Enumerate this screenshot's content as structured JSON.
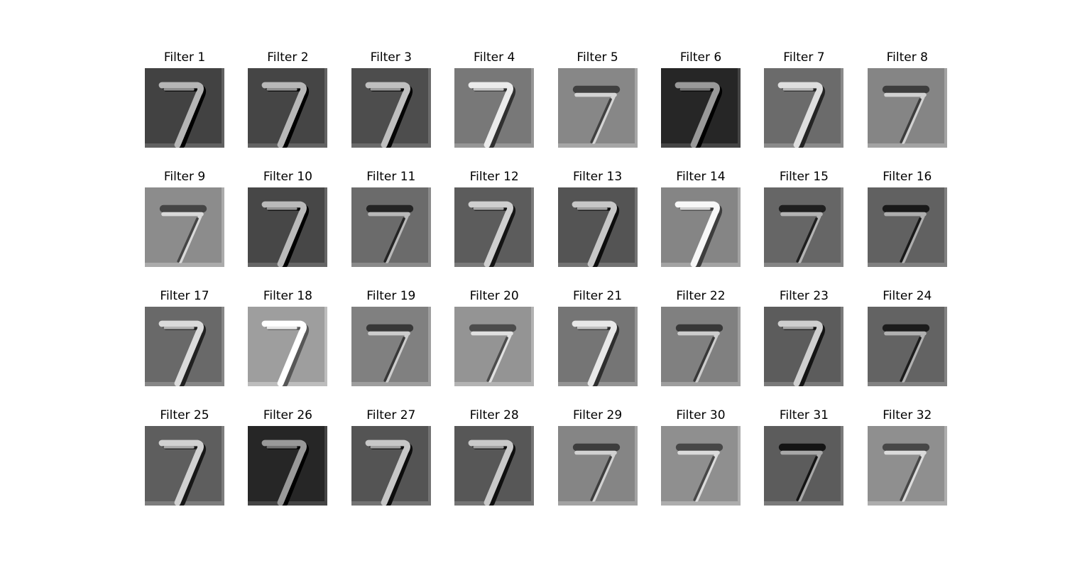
{
  "figure": {
    "background": "#ffffff",
    "rows": 4,
    "columns": 8,
    "panels": [
      {
        "title": "Filter 1",
        "background_level": 0.26,
        "mark": "white-stroke-dark-edge"
      },
      {
        "title": "Filter 2",
        "background_level": 0.27,
        "mark": "white-stroke-dark-edge"
      },
      {
        "title": "Filter 3",
        "background_level": 0.3,
        "mark": "white-stroke-dark-edge"
      },
      {
        "title": "Filter 4",
        "background_level": 0.47,
        "mark": "white-stroke-dark-edge"
      },
      {
        "title": "Filter 5",
        "background_level": 0.53,
        "mark": "dark-bar-faint-stroke"
      },
      {
        "title": "Filter 6",
        "background_level": 0.15,
        "mark": "white-stroke-dark-edge"
      },
      {
        "title": "Filter 7",
        "background_level": 0.42,
        "mark": "white-stroke-dark-edge"
      },
      {
        "title": "Filter 8",
        "background_level": 0.52,
        "mark": "dark-bar-faint-stroke"
      },
      {
        "title": "Filter 9",
        "background_level": 0.55,
        "mark": "dark-bar-faint-stroke"
      },
      {
        "title": "Filter 10",
        "background_level": 0.28,
        "mark": "white-stroke-dark-edge"
      },
      {
        "title": "Filter 11",
        "background_level": 0.42,
        "mark": "dark-bar-faint-stroke"
      },
      {
        "title": "Filter 12",
        "background_level": 0.36,
        "mark": "white-stroke-dark-edge"
      },
      {
        "title": "Filter 13",
        "background_level": 0.33,
        "mark": "white-stroke-dark-edge"
      },
      {
        "title": "Filter 14",
        "background_level": 0.52,
        "mark": "white-stroke-dark-edge"
      },
      {
        "title": "Filter 15",
        "background_level": 0.4,
        "mark": "dark-bar-faint-stroke"
      },
      {
        "title": "Filter 16",
        "background_level": 0.38,
        "mark": "dark-bar-faint-stroke"
      },
      {
        "title": "Filter 17",
        "background_level": 0.41,
        "mark": "white-stroke-dark-edge"
      },
      {
        "title": "Filter 18",
        "background_level": 0.62,
        "mark": "white-stroke-dark-edge"
      },
      {
        "title": "Filter 19",
        "background_level": 0.5,
        "mark": "dark-bar-faint-stroke"
      },
      {
        "title": "Filter 20",
        "background_level": 0.58,
        "mark": "dark-bar-faint-stroke"
      },
      {
        "title": "Filter 21",
        "background_level": 0.46,
        "mark": "white-stroke-dark-edge"
      },
      {
        "title": "Filter 22",
        "background_level": 0.5,
        "mark": "dark-bar-faint-stroke"
      },
      {
        "title": "Filter 23",
        "background_level": 0.36,
        "mark": "white-stroke-dark-edge"
      },
      {
        "title": "Filter 24",
        "background_level": 0.39,
        "mark": "dark-bar-faint-stroke"
      },
      {
        "title": "Filter 25",
        "background_level": 0.37,
        "mark": "white-stroke-dark-edge"
      },
      {
        "title": "Filter 26",
        "background_level": 0.15,
        "mark": "white-stroke-dark-edge"
      },
      {
        "title": "Filter 27",
        "background_level": 0.33,
        "mark": "white-stroke-dark-edge"
      },
      {
        "title": "Filter 28",
        "background_level": 0.34,
        "mark": "white-stroke-dark-edge"
      },
      {
        "title": "Filter 29",
        "background_level": 0.52,
        "mark": "dark-bar-faint-stroke"
      },
      {
        "title": "Filter 30",
        "background_level": 0.56,
        "mark": "dark-bar-faint-stroke"
      },
      {
        "title": "Filter 31",
        "background_level": 0.36,
        "mark": "dark-bar-faint-stroke"
      },
      {
        "title": "Filter 32",
        "background_level": 0.56,
        "mark": "dark-bar-faint-stroke"
      }
    ]
  }
}
